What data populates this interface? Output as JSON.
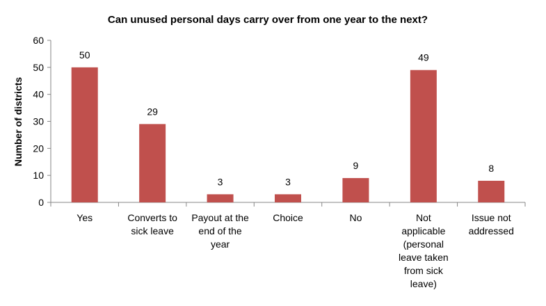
{
  "chart_data": {
    "type": "bar",
    "title": "Can unused personal days carry over from one year to the next?",
    "xlabel": "",
    "ylabel": "Number of districts",
    "ylim": [
      0,
      60
    ],
    "yticks": [
      0,
      10,
      20,
      30,
      40,
      50,
      60
    ],
    "grid": false,
    "legend": "none",
    "bar_color": "#c0504d",
    "categories": [
      [
        "Yes"
      ],
      [
        "Converts to",
        "sick leave"
      ],
      [
        "Payout at the",
        "end of the",
        "year"
      ],
      [
        "Choice"
      ],
      [
        "No"
      ],
      [
        "Not",
        "applicable",
        "(personal",
        "leave taken",
        "from sick",
        "leave)"
      ],
      [
        "Issue not",
        "addressed"
      ]
    ],
    "values": [
      50,
      29,
      3,
      3,
      9,
      49,
      8
    ],
    "data_labels": [
      "50",
      "29",
      "3",
      "3",
      "9",
      "49",
      "8"
    ]
  }
}
